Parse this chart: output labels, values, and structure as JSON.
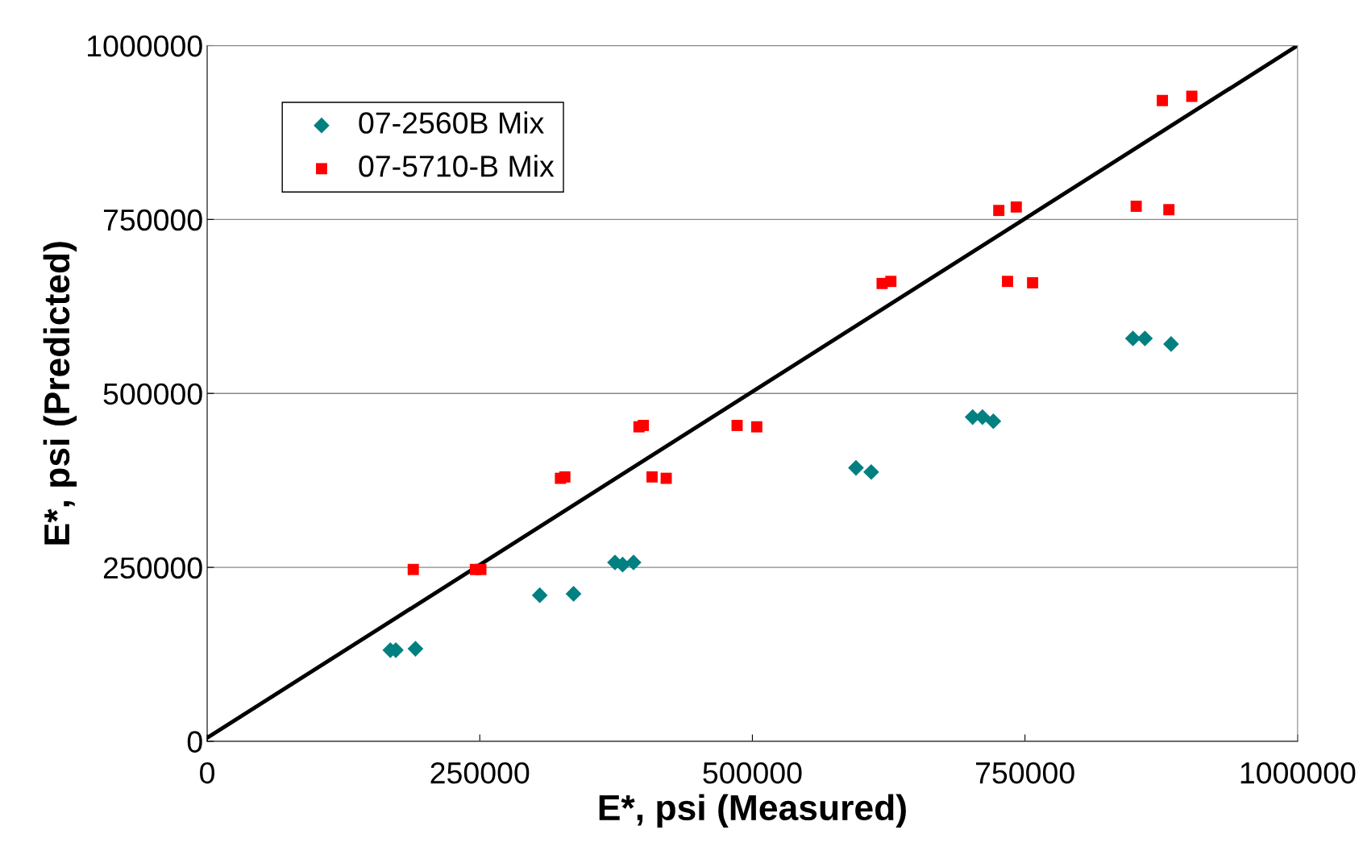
{
  "chart_data": {
    "type": "scatter",
    "xlabel": "E*, psi (Measured)",
    "ylabel": "E*, psi (Predicted)",
    "xlim": [
      0,
      1000000
    ],
    "ylim": [
      0,
      1000000
    ],
    "xticks": [
      0,
      250000,
      500000,
      750000,
      1000000
    ],
    "yticks": [
      0,
      250000,
      500000,
      750000,
      1000000
    ],
    "grid": "y",
    "legend": "top left",
    "series": [
      {
        "name": "07-2560B Mix",
        "color": "#008080",
        "marker": "diamond",
        "x": [
          168000,
          173000,
          191000,
          305000,
          336000,
          374000,
          381000,
          391000,
          595000,
          609000,
          702000,
          711000,
          721000,
          849000,
          860000,
          884000
        ],
        "values": [
          131000,
          131000,
          133000,
          210000,
          212000,
          257000,
          254000,
          257000,
          393000,
          387000,
          466000,
          466000,
          460000,
          579000,
          579000,
          571000
        ]
      },
      {
        "name": "07-5710-B Mix",
        "color": "#ff0000",
        "marker": "square",
        "x": [
          189000,
          246000,
          251000,
          324000,
          328000,
          396000,
          400000,
          408000,
          421000,
          486000,
          504000,
          619000,
          627000,
          726000,
          742000,
          734000,
          757000,
          852000,
          882000,
          876000,
          903000
        ],
        "values": [
          247000,
          247000,
          247000,
          378000,
          380000,
          452000,
          454000,
          380000,
          378000,
          454000,
          452000,
          658000,
          661000,
          763000,
          768000,
          661000,
          659000,
          769000,
          764000,
          921000,
          927000
        ]
      },
      {
        "type": "line",
        "color": "#000000",
        "marker": "none",
        "line_style": "solid",
        "x": [
          0,
          1000000
        ],
        "values": [
          5000,
          1000000
        ]
      }
    ]
  }
}
